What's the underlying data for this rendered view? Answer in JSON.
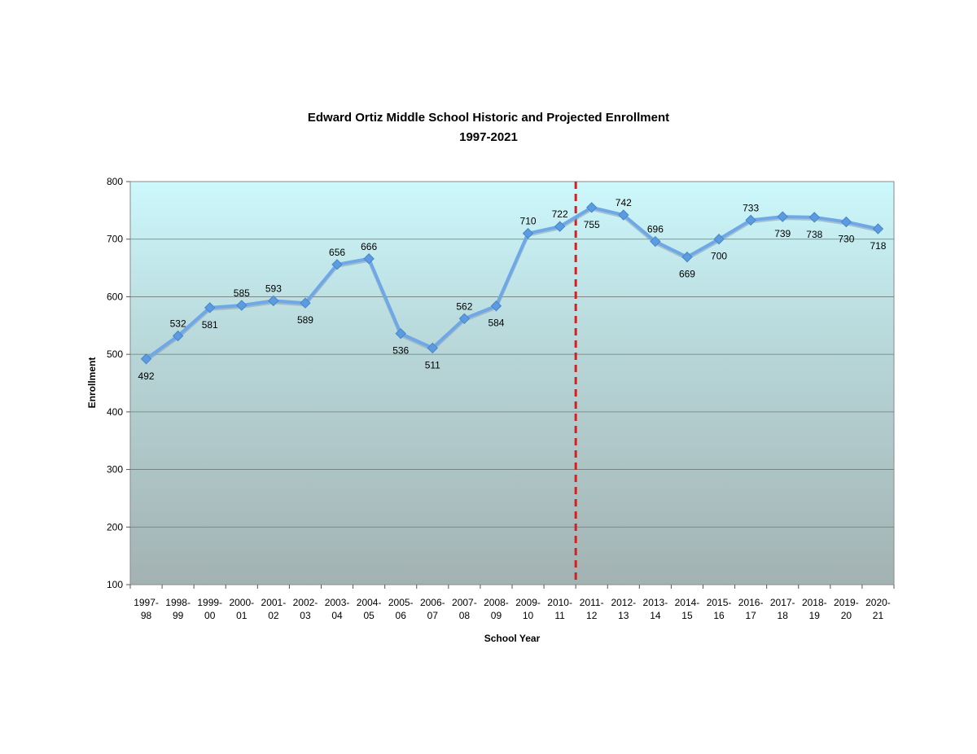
{
  "chart_data": {
    "type": "line",
    "title": "Edward Ortiz Middle School Historic and Projected Enrollment",
    "subtitle": "1997-2021",
    "xlabel": "School Year",
    "ylabel": "Enrollment",
    "ylim": [
      100,
      800
    ],
    "yticks": [
      100,
      200,
      300,
      400,
      500,
      600,
      700,
      800
    ],
    "grid": "horizontal",
    "categories": [
      [
        "1997-",
        "98"
      ],
      [
        "1998-",
        "99"
      ],
      [
        "1999-",
        "00"
      ],
      [
        "2000-",
        "01"
      ],
      [
        "2001-",
        "02"
      ],
      [
        "2002-",
        "03"
      ],
      [
        "2003-",
        "04"
      ],
      [
        "2004-",
        "05"
      ],
      [
        "2005-",
        "06"
      ],
      [
        "2006-",
        "07"
      ],
      [
        "2007-",
        "08"
      ],
      [
        "2008-",
        "09"
      ],
      [
        "2009-",
        "10"
      ],
      [
        "2010-",
        "11"
      ],
      [
        "2011-",
        "12"
      ],
      [
        "2012-",
        "13"
      ],
      [
        "2013-",
        "14"
      ],
      [
        "2014-",
        "15"
      ],
      [
        "2015-",
        "16"
      ],
      [
        "2016-",
        "17"
      ],
      [
        "2017-",
        "18"
      ],
      [
        "2018-",
        "19"
      ],
      [
        "2019-",
        "20"
      ],
      [
        "2020-",
        "21"
      ]
    ],
    "series": [
      {
        "values": [
          492,
          532,
          581,
          585,
          593,
          589,
          656,
          666,
          536,
          511,
          562,
          584,
          710,
          722,
          755,
          742,
          696,
          669,
          700,
          733,
          739,
          738,
          730,
          718
        ],
        "color": "#6fa8e6"
      }
    ],
    "label_positions": [
      "below",
      "above",
      "below",
      "above",
      "above",
      "below",
      "above",
      "above",
      "below",
      "below",
      "above",
      "below",
      "above",
      "above",
      "below",
      "above",
      "above",
      "below",
      "below",
      "above",
      "below",
      "below",
      "below",
      "below"
    ],
    "divider": {
      "between": [
        "2010-11",
        "2011-12"
      ],
      "style": "dashed",
      "color": "#d42020"
    },
    "plot_background": {
      "top": "#ccf8fc",
      "bottom": "#a3b2b2"
    }
  }
}
